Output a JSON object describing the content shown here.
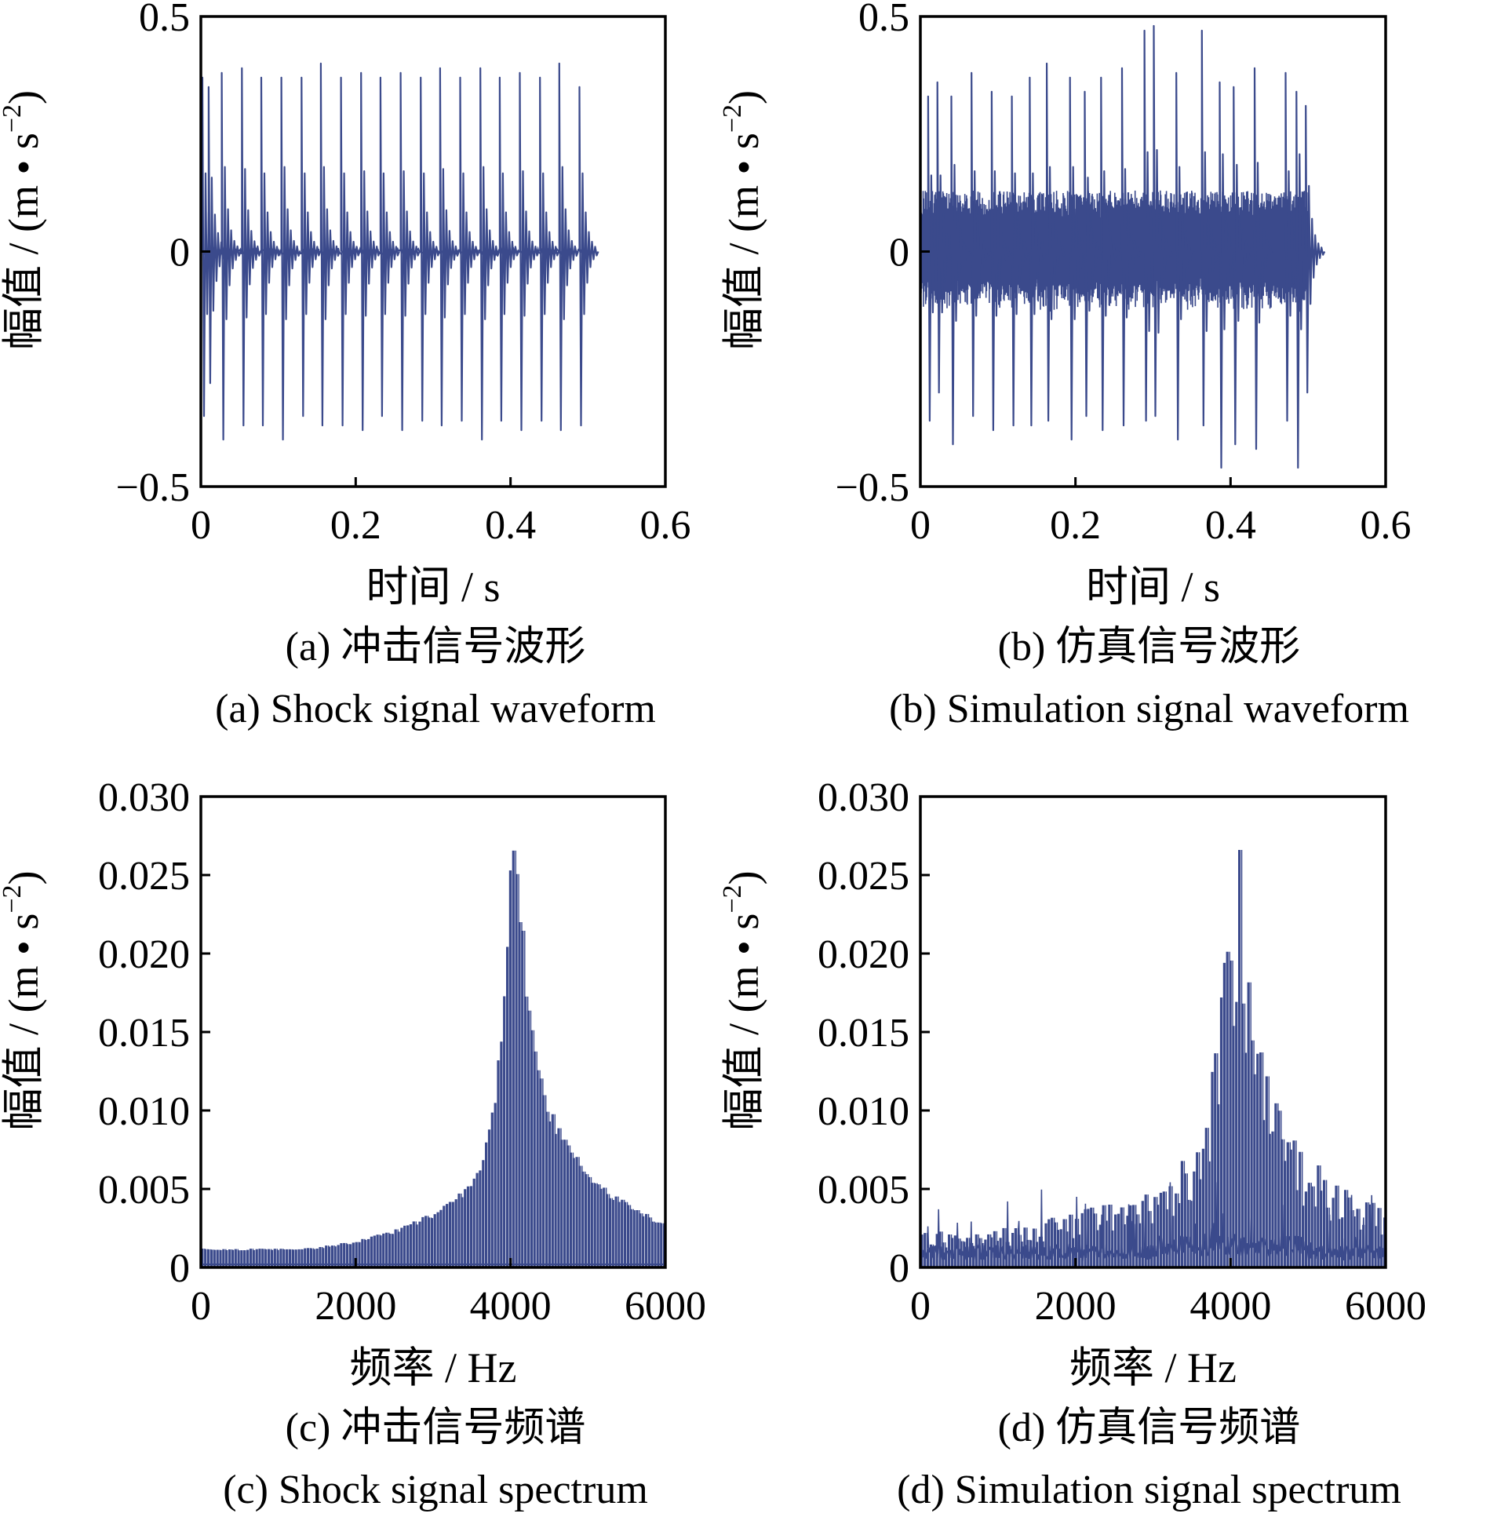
{
  "colors": {
    "series": "#3B4A8C",
    "axis": "#000000",
    "background": "#FFFFFF"
  },
  "chart_data": [
    {
      "type": "line",
      "panel": "a",
      "caption_cn": "(a)  冲击信号波形",
      "caption_en": "(a)  Shock signal waveform",
      "xlabel": "时间 / s",
      "ylabel_main": "幅值 / (m • s",
      "ylabel_exp": "−2",
      "ylabel_close": ")",
      "xlim": [
        0,
        0.6
      ],
      "ylim": [
        -0.5,
        0.5
      ],
      "xticks": [
        0,
        0.2,
        0.4,
        0.6
      ],
      "xtick_labels": [
        "0",
        "0.2",
        "0.4",
        "0.6"
      ],
      "yticks": [
        -0.5,
        0,
        0.5
      ],
      "ytick_labels": [
        "−0.5",
        "0",
        "0.5"
      ],
      "grid": false,
      "signal_duration": 0.5,
      "impulse_period": 0.0256,
      "noise_amplitude": 0.006,
      "impulse_peaks": [
        {
          "x": 0.002,
          "y": 0.37,
          "y_neg": -0.35
        },
        {
          "x": 0.01,
          "y": 0.35,
          "y_neg": -0.28
        },
        {
          "x": 0.027,
          "y": 0.38,
          "y_neg": -0.4
        },
        {
          "x": 0.053,
          "y": 0.39,
          "y_neg": -0.37
        },
        {
          "x": 0.078,
          "y": 0.37,
          "y_neg": -0.37
        },
        {
          "x": 0.104,
          "y": 0.37,
          "y_neg": -0.4
        },
        {
          "x": 0.13,
          "y": 0.37,
          "y_neg": -0.35
        },
        {
          "x": 0.155,
          "y": 0.4,
          "y_neg": -0.37
        },
        {
          "x": 0.181,
          "y": 0.37,
          "y_neg": -0.37
        },
        {
          "x": 0.207,
          "y": 0.38,
          "y_neg": -0.38
        },
        {
          "x": 0.232,
          "y": 0.37,
          "y_neg": -0.35
        },
        {
          "x": 0.258,
          "y": 0.38,
          "y_neg": -0.38
        },
        {
          "x": 0.284,
          "y": 0.37,
          "y_neg": -0.36
        },
        {
          "x": 0.309,
          "y": 0.39,
          "y_neg": -0.37
        },
        {
          "x": 0.335,
          "y": 0.37,
          "y_neg": -0.36
        },
        {
          "x": 0.361,
          "y": 0.39,
          "y_neg": -0.4
        },
        {
          "x": 0.386,
          "y": 0.37,
          "y_neg": -0.36
        },
        {
          "x": 0.412,
          "y": 0.38,
          "y_neg": -0.38
        },
        {
          "x": 0.438,
          "y": 0.37,
          "y_neg": -0.36
        },
        {
          "x": 0.463,
          "y": 0.4,
          "y_neg": -0.38
        },
        {
          "x": 0.489,
          "y": 0.35,
          "y_neg": -0.37
        }
      ]
    },
    {
      "type": "line",
      "panel": "b",
      "caption_cn": "(b)  仿真信号波形",
      "caption_en": "(b)  Simulation signal waveform",
      "xlabel": "时间 / s",
      "ylabel_main": "幅值 / (m • s",
      "ylabel_exp": "−2",
      "ylabel_close": ")",
      "xlim": [
        0,
        0.6
      ],
      "ylim": [
        -0.5,
        0.5
      ],
      "xticks": [
        0,
        0.2,
        0.4,
        0.6
      ],
      "xtick_labels": [
        "0",
        "0.2",
        "0.4",
        "0.6"
      ],
      "yticks": [
        -0.5,
        0,
        0.5
      ],
      "ytick_labels": [
        "−0.5",
        "0",
        "0.5"
      ],
      "grid": false,
      "signal_duration": 0.5,
      "noise_amplitude": 0.13,
      "impulse_peaks": [
        {
          "x": 0.01,
          "y": 0.33,
          "y_neg": -0.36
        },
        {
          "x": 0.022,
          "y": 0.36,
          "y_neg": -0.3
        },
        {
          "x": 0.04,
          "y": 0.33,
          "y_neg": -0.41
        },
        {
          "x": 0.066,
          "y": 0.38,
          "y_neg": -0.35
        },
        {
          "x": 0.092,
          "y": 0.34,
          "y_neg": -0.38
        },
        {
          "x": 0.118,
          "y": 0.33,
          "y_neg": -0.37
        },
        {
          "x": 0.141,
          "y": 0.37,
          "y_neg": -0.37
        },
        {
          "x": 0.163,
          "y": 0.4,
          "y_neg": -0.36
        },
        {
          "x": 0.193,
          "y": 0.37,
          "y_neg": -0.4
        },
        {
          "x": 0.212,
          "y": 0.34,
          "y_neg": -0.35
        },
        {
          "x": 0.233,
          "y": 0.37,
          "y_neg": -0.38
        },
        {
          "x": 0.26,
          "y": 0.39,
          "y_neg": -0.37
        },
        {
          "x": 0.289,
          "y": 0.47,
          "y_neg": -0.36
        },
        {
          "x": 0.301,
          "y": 0.48,
          "y_neg": -0.35
        },
        {
          "x": 0.33,
          "y": 0.38,
          "y_neg": -0.4
        },
        {
          "x": 0.363,
          "y": 0.47,
          "y_neg": -0.37
        },
        {
          "x": 0.386,
          "y": 0.36,
          "y_neg": -0.46
        },
        {
          "x": 0.404,
          "y": 0.35,
          "y_neg": -0.41
        },
        {
          "x": 0.431,
          "y": 0.39,
          "y_neg": -0.42
        },
        {
          "x": 0.471,
          "y": 0.38,
          "y_neg": -0.36
        },
        {
          "x": 0.485,
          "y": 0.34,
          "y_neg": -0.46
        },
        {
          "x": 0.497,
          "y": 0.31,
          "y_neg": -0.3
        }
      ]
    },
    {
      "type": "line",
      "panel": "c",
      "caption_cn": "(c)  冲击信号频谱",
      "caption_en": "(c)  Shock signal spectrum",
      "xlabel": "频率 / Hz",
      "ylabel_main": "幅值 / (m • s",
      "ylabel_exp": "−2",
      "ylabel_close": ")",
      "xlim": [
        0,
        6000
      ],
      "ylim": [
        0,
        0.03
      ],
      "xticks": [
        0,
        2000,
        4000,
        6000
      ],
      "xtick_labels": [
        "0",
        "2000",
        "4000",
        "6000"
      ],
      "yticks": [
        0,
        0.005,
        0.01,
        0.015,
        0.02,
        0.025,
        0.03
      ],
      "ytick_labels": [
        "0",
        "0.005",
        "0.010",
        "0.015",
        "0.020",
        "0.025",
        "0.030"
      ],
      "grid": false,
      "harmonic_spacing_hz": 39,
      "resonance_hz": 4000,
      "envelope_x": [
        0,
        500,
        1000,
        1500,
        2000,
        2500,
        3000,
        3300,
        3500,
        3600,
        3700,
        3800,
        3900,
        3950,
        4000,
        4050,
        4100,
        4150,
        4200,
        4300,
        4400,
        4500,
        4700,
        5000,
        5300,
        5600,
        6000
      ],
      "envelope_y": [
        0.0012,
        0.0012,
        0.0012,
        0.0013,
        0.0017,
        0.0024,
        0.0035,
        0.0045,
        0.0057,
        0.0066,
        0.0082,
        0.0115,
        0.0168,
        0.0212,
        0.027,
        0.0268,
        0.025,
        0.0218,
        0.0185,
        0.0148,
        0.0122,
        0.0102,
        0.0082,
        0.0062,
        0.0048,
        0.0038,
        0.0028
      ]
    },
    {
      "type": "line",
      "panel": "d",
      "caption_cn": "(d)  仿真信号频谱",
      "caption_en": "(d)  Simulation signal spectrum",
      "xlabel": "频率 / Hz",
      "ylabel_main": "幅值 / (m • s",
      "ylabel_exp": "−2",
      "ylabel_close": ")",
      "xlim": [
        0,
        6000
      ],
      "ylim": [
        0,
        0.03
      ],
      "xticks": [
        0,
        2000,
        4000,
        6000
      ],
      "xtick_labels": [
        "0",
        "2000",
        "4000",
        "6000"
      ],
      "yticks": [
        0,
        0.005,
        0.01,
        0.015,
        0.02,
        0.025,
        0.03
      ],
      "ytick_labels": [
        "0",
        "0.005",
        "0.010",
        "0.015",
        "0.020",
        "0.025",
        "0.030"
      ],
      "grid": false,
      "harmonic_spacing_hz": 39,
      "resonance_hz": 4000,
      "noise_floor": 0.0012,
      "noise_peak": 0.0038,
      "envelope_x": [
        0,
        500,
        1000,
        1500,
        2000,
        2500,
        3000,
        3300,
        3500,
        3600,
        3700,
        3800,
        3900,
        3950,
        4000,
        4050,
        4100,
        4150,
        4200,
        4300,
        4400,
        4500,
        4700,
        5000,
        5300,
        5600,
        6000
      ],
      "envelope_y": [
        0.002,
        0.0022,
        0.0024,
        0.0027,
        0.0033,
        0.004,
        0.0048,
        0.0058,
        0.0068,
        0.008,
        0.0095,
        0.013,
        0.0175,
        0.0228,
        0.0265,
        0.0266,
        0.026,
        0.0232,
        0.0198,
        0.0152,
        0.0126,
        0.0105,
        0.0085,
        0.0065,
        0.0052,
        0.0042,
        0.0035
      ]
    }
  ]
}
